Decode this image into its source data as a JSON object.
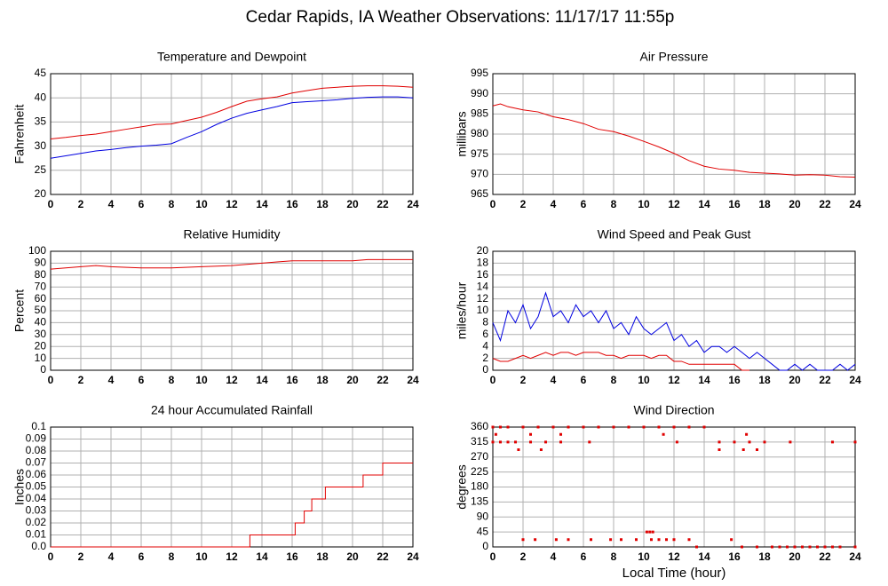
{
  "title": "Cedar Rapids, IA Weather Observations: 11/17/17 11:55p",
  "chart_data": [
    {
      "type": "line",
      "title": "Temperature and Dewpoint",
      "ylabel": "Fahrenheit",
      "x": [
        0,
        1,
        2,
        3,
        4,
        5,
        6,
        7,
        8,
        9,
        10,
        11,
        12,
        13,
        14,
        15,
        16,
        17,
        18,
        19,
        20,
        21,
        22,
        23,
        24
      ],
      "series": [
        {
          "color": "#e00000",
          "values": [
            31.5,
            31.8,
            32.2,
            32.5,
            33,
            33.5,
            34,
            34.5,
            34.6,
            35.3,
            36,
            37,
            38.2,
            39.3,
            39.8,
            40.2,
            41,
            41.5,
            42,
            42.2,
            42.4,
            42.5,
            42.5,
            42.4,
            42.2
          ]
        },
        {
          "color": "#0000e0",
          "values": [
            27.5,
            28,
            28.5,
            29,
            29.3,
            29.7,
            30,
            30.2,
            30.5,
            31.8,
            33,
            34.5,
            35.8,
            36.8,
            37.5,
            38.2,
            39,
            39.2,
            39.4,
            39.6,
            39.9,
            40.1,
            40.2,
            40.2,
            40
          ]
        }
      ],
      "xlim": [
        0,
        24
      ],
      "xticks": [
        0,
        2,
        4,
        6,
        8,
        10,
        12,
        14,
        16,
        18,
        20,
        22,
        24
      ],
      "ylim": [
        20,
        45
      ],
      "yticks": [
        20,
        25,
        30,
        35,
        40,
        45
      ],
      "grid": true
    },
    {
      "type": "line",
      "title": "Air Pressure",
      "ylabel": "millibars",
      "x": [
        0,
        0.5,
        1,
        2,
        3,
        4,
        5,
        6,
        7,
        8,
        9,
        10,
        11,
        12,
        13,
        14,
        15,
        16,
        17,
        18,
        19,
        20,
        21,
        22,
        23,
        24
      ],
      "series": [
        {
          "color": "#e00000",
          "values": [
            987,
            987.5,
            986.8,
            986,
            985.5,
            984.3,
            983.6,
            982.6,
            981.2,
            980.6,
            979.5,
            978.2,
            976.8,
            975.2,
            973.4,
            972,
            971.3,
            971,
            970.5,
            970.3,
            970.1,
            969.8,
            969.9,
            969.8,
            969.4,
            969.3
          ]
        }
      ],
      "xlim": [
        0,
        24
      ],
      "xticks": [
        0,
        2,
        4,
        6,
        8,
        10,
        12,
        14,
        16,
        18,
        20,
        22,
        24
      ],
      "ylim": [
        965,
        995
      ],
      "yticks": [
        965,
        970,
        975,
        980,
        985,
        990,
        995
      ],
      "grid": true
    },
    {
      "type": "line",
      "title": "Relative Humidity",
      "ylabel": "Percent",
      "x": [
        0,
        2,
        3,
        4,
        6,
        8,
        10,
        12,
        13,
        14,
        15,
        16,
        18,
        20,
        21,
        24
      ],
      "series": [
        {
          "color": "#e00000",
          "values": [
            85,
            87,
            88,
            87,
            86,
            86,
            87,
            88,
            89,
            90,
            91,
            92,
            92,
            92,
            93,
            93
          ]
        }
      ],
      "xlim": [
        0,
        24
      ],
      "xticks": [
        0,
        2,
        4,
        6,
        8,
        10,
        12,
        14,
        16,
        18,
        20,
        22,
        24
      ],
      "ylim": [
        0,
        100
      ],
      "yticks": [
        0,
        10,
        20,
        30,
        40,
        50,
        60,
        70,
        80,
        90,
        100
      ],
      "grid": true
    },
    {
      "type": "line",
      "title": "Wind Speed and Peak Gust",
      "ylabel": "miles/hour",
      "x": [
        0,
        0.5,
        1,
        1.5,
        2,
        2.5,
        3,
        3.5,
        4,
        4.5,
        5,
        5.5,
        6,
        6.5,
        7,
        7.5,
        8,
        8.5,
        9,
        9.5,
        10,
        10.5,
        11,
        11.5,
        12,
        12.5,
        13,
        13.5,
        14,
        14.5,
        15,
        15.5,
        16,
        16.5,
        17,
        17.5,
        18,
        18.5,
        19,
        19.5,
        20,
        20.5,
        21,
        21.5,
        22,
        22.5,
        23,
        23.5,
        24
      ],
      "series": [
        {
          "color": "#0000e0",
          "values": [
            8,
            5,
            10,
            8,
            11,
            7,
            9,
            13,
            9,
            10,
            8,
            11,
            9,
            10,
            8,
            10,
            7,
            8,
            6,
            9,
            7,
            6,
            7,
            8,
            5,
            6,
            4,
            5,
            3,
            4,
            4,
            3,
            4,
            3,
            2,
            3,
            2,
            1,
            0,
            0,
            1,
            0,
            1,
            0,
            0,
            0,
            1,
            0,
            1
          ]
        },
        {
          "color": "#e00000",
          "values": [
            2,
            1.5,
            1.5,
            2,
            2.5,
            2,
            2.5,
            3,
            2.5,
            3,
            3,
            2.5,
            3,
            3,
            3,
            2.5,
            2.5,
            2,
            2.5,
            2.5,
            2.5,
            2,
            2.5,
            2.5,
            1.5,
            1.5,
            1,
            1,
            1,
            1,
            1,
            1,
            1,
            0,
            0,
            null,
            null,
            null,
            null,
            null,
            null,
            null,
            null,
            null,
            null,
            null,
            null,
            null,
            null
          ]
        }
      ],
      "xlim": [
        0,
        24
      ],
      "xticks": [
        0,
        2,
        4,
        6,
        8,
        10,
        12,
        14,
        16,
        18,
        20,
        22,
        24
      ],
      "ylim": [
        0,
        20
      ],
      "yticks": [
        0,
        2,
        4,
        6,
        8,
        10,
        12,
        14,
        16,
        18,
        20
      ],
      "grid": true
    },
    {
      "type": "step",
      "title": "24 hour Accumulated Rainfall",
      "ylabel": "Inches",
      "x": [
        0,
        13.2,
        16.2,
        16.8,
        17.3,
        18.2,
        20.7,
        22,
        24
      ],
      "series": [
        {
          "color": "#e00000",
          "values": [
            0,
            0.01,
            0.02,
            0.03,
            0.04,
            0.05,
            0.06,
            0.07,
            0.07
          ]
        }
      ],
      "xlim": [
        0,
        24
      ],
      "xticks": [
        0,
        2,
        4,
        6,
        8,
        10,
        12,
        14,
        16,
        18,
        20,
        22,
        24
      ],
      "ylim": [
        0,
        0.1
      ],
      "yticks": [
        {
          "value": 0,
          "label": "0.0"
        },
        0.01,
        0.02,
        0.03,
        0.04,
        0.05,
        0.06,
        0.07,
        0.08,
        0.09,
        0.1
      ],
      "grid": true
    },
    {
      "type": "scatter",
      "title": "Wind Direction",
      "ylabel": "degrees",
      "xlabel": "Local Time (hour)",
      "x": [
        0,
        0.5,
        1,
        2,
        3,
        4,
        5,
        6,
        7,
        8,
        9,
        10,
        11,
        12,
        13,
        14,
        0.2,
        2.5,
        4.5,
        11.3,
        16.8,
        0,
        0.5,
        1,
        1.5,
        2.5,
        3.5,
        4.5,
        6.4,
        12.2,
        15,
        16,
        17,
        18,
        19.7,
        22.5,
        24,
        1.7,
        3.2,
        15,
        16.6,
        17.5,
        2,
        2.8,
        4.2,
        5,
        6.5,
        7.8,
        8.5,
        9.5,
        10.5,
        11,
        11.5,
        12,
        13,
        15.8,
        10.2,
        10.4,
        10.6,
        13.5,
        16.5,
        17.5,
        18.5,
        19,
        19.5,
        20,
        20.5,
        21,
        21.5,
        22,
        22.5,
        23,
        24
      ],
      "series": [
        {
          "color": "#e00000",
          "values": [
            360,
            360,
            360,
            360,
            360,
            360,
            360,
            360,
            360,
            360,
            360,
            360,
            360,
            360,
            360,
            360,
            338,
            338,
            338,
            338,
            338,
            315,
            315,
            315,
            315,
            315,
            315,
            315,
            315,
            315,
            315,
            315,
            315,
            315,
            315,
            315,
            315,
            292,
            292,
            292,
            292,
            292,
            22,
            22,
            22,
            22,
            22,
            22,
            22,
            22,
            22,
            22,
            22,
            22,
            22,
            22,
            45,
            45,
            45,
            0,
            0,
            0,
            0,
            0,
            0,
            0,
            0,
            0,
            0,
            0,
            0,
            0,
            0
          ]
        }
      ],
      "xlim": [
        0,
        24
      ],
      "xticks": [
        0,
        2,
        4,
        6,
        8,
        10,
        12,
        14,
        16,
        18,
        20,
        22,
        24
      ],
      "ylim": [
        0,
        360
      ],
      "yticks": [
        0,
        45,
        90,
        135,
        180,
        225,
        270,
        315,
        360
      ],
      "grid": true
    }
  ]
}
